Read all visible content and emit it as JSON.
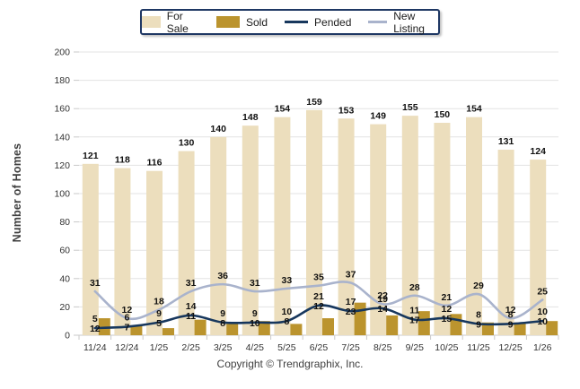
{
  "chart_data": {
    "type": "bar",
    "subtype": "grouped-bars-with-lines",
    "categories": [
      "11/24",
      "12/24",
      "1/25",
      "2/25",
      "3/25",
      "4/25",
      "5/25",
      "6/25",
      "7/25",
      "8/25",
      "9/25",
      "10/25",
      "11/25",
      "12/25",
      "1/26"
    ],
    "series": [
      {
        "name": "For Sale",
        "type": "bar",
        "color": "#ecdebd",
        "values": [
          121,
          118,
          116,
          130,
          140,
          148,
          154,
          159,
          153,
          149,
          155,
          150,
          154,
          131,
          124
        ]
      },
      {
        "name": "Sold",
        "type": "bar",
        "color": "#bb942e",
        "values": [
          12,
          7,
          5,
          11,
          8,
          10,
          8,
          12,
          23,
          14,
          17,
          15,
          9,
          9,
          10
        ]
      },
      {
        "name": "Pended",
        "type": "line",
        "color": "#17375d",
        "values": [
          5,
          6,
          9,
          14,
          9,
          9,
          10,
          21,
          17,
          19,
          11,
          12,
          8,
          8,
          10
        ]
      },
      {
        "name": "New Listing",
        "type": "line",
        "color": "#a9b3cc",
        "values": [
          31,
          12,
          18,
          31,
          36,
          31,
          33,
          35,
          37,
          22,
          28,
          21,
          29,
          12,
          25
        ]
      }
    ],
    "title": "",
    "xlabel": "",
    "ylabel": "Number of Homes",
    "ylim": [
      0,
      200
    ],
    "ytick_step": 20,
    "grid": true,
    "legend_position": "top",
    "colors": {
      "grid": "#e3e3e3",
      "axis": "#c9c9c9",
      "legend_border": "#1f3864",
      "data_label": "#111111",
      "tick_label": "#333333"
    }
  },
  "footer": {
    "copyright": "Copyright © Trendgraphix, Inc."
  }
}
